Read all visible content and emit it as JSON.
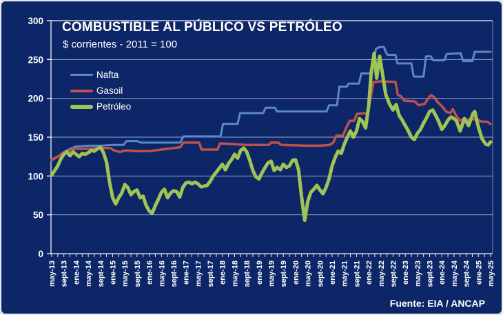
{
  "window": {
    "background_color": "#0d2667",
    "frame_border_color": "#e8ebf1"
  },
  "header": {
    "title": "COMBUSTIBLE AL PÚBLICO VS PETRÓLEO",
    "subtitle": "$ corrientes - 2011 = 100"
  },
  "footer": {
    "source": "Fuente: EIA / ANCAP"
  },
  "legend": {
    "position": "top-left",
    "items": [
      {
        "label": "Nafta",
        "color": "#5c88c9",
        "swatch_height": 3
      },
      {
        "label": "Gasoil",
        "color": "#c0504d",
        "swatch_height": 4
      },
      {
        "label": "Petróleo",
        "color": "#9fc455",
        "swatch_height": 6
      }
    ]
  },
  "chart_data": {
    "type": "line",
    "title": "COMBUSTIBLE AL PÚBLICO VS PETRÓLEO",
    "subtitle": "$ corrientes - 2011 = 100",
    "xlabel": "",
    "ylabel": "",
    "ylim": [
      0,
      300
    ],
    "y_ticks": [
      0,
      50,
      100,
      150,
      200,
      250,
      300
    ],
    "grid": true,
    "gridline_color": "#b0bfdc",
    "axis_color": "#ffffff",
    "text_color": "#ffffff",
    "x_labels": [
      "may-13",
      "sept-13",
      "ene-14",
      "may-14",
      "sept-14",
      "ene-15",
      "may-15",
      "sept-15",
      "ene-16",
      "may-16",
      "sept-16",
      "ene-17",
      "may-17",
      "sept-17",
      "ene-18",
      "may-18",
      "sept-18",
      "ene-19",
      "may-19",
      "sept-19",
      "ene-20",
      "may-20",
      "sept-20",
      "ene-21",
      "may-21",
      "sept-21",
      "ene-22",
      "may-22",
      "sept-22",
      "ene-23",
      "may-23",
      "sept-23",
      "ene-24",
      "may-24",
      "sept-24",
      "ene-25",
      "may-25"
    ],
    "x_label_interval_months": 4,
    "x_minor_tick_every_ticks": 0.5,
    "series": [
      {
        "name": "Nafta",
        "color": "#5c88c9",
        "width": 3,
        "points": [
          [
            0,
            120
          ],
          [
            0.5,
            125
          ],
          [
            1,
            131
          ],
          [
            1.5,
            135
          ],
          [
            2,
            138
          ],
          [
            3,
            139
          ],
          [
            4,
            139
          ],
          [
            5,
            140
          ],
          [
            5.9,
            140
          ],
          [
            6.15,
            145
          ],
          [
            7,
            145
          ],
          [
            7.3,
            143
          ],
          [
            10.55,
            143
          ],
          [
            10.8,
            151
          ],
          [
            13.85,
            151
          ],
          [
            14.05,
            167
          ],
          [
            15.25,
            167
          ],
          [
            15.45,
            181
          ],
          [
            17.35,
            181
          ],
          [
            17.55,
            188
          ],
          [
            18.3,
            188
          ],
          [
            18.5,
            183
          ],
          [
            22.55,
            183
          ],
          [
            22.75,
            191
          ],
          [
            23.4,
            191
          ],
          [
            23.6,
            215
          ],
          [
            24.2,
            215
          ],
          [
            24.35,
            219
          ],
          [
            25.2,
            219
          ],
          [
            25.4,
            232
          ],
          [
            26.1,
            232
          ],
          [
            26.3,
            240
          ],
          [
            26.6,
            264
          ],
          [
            26.9,
            266
          ],
          [
            27.25,
            266
          ],
          [
            27.4,
            260
          ],
          [
            27.55,
            256
          ],
          [
            28.2,
            256
          ],
          [
            28.35,
            245
          ],
          [
            29.5,
            245
          ],
          [
            29.7,
            228
          ],
          [
            30.5,
            228
          ],
          [
            30.7,
            254
          ],
          [
            31.1,
            254
          ],
          [
            31.3,
            249
          ],
          [
            32.2,
            249
          ],
          [
            32.4,
            257
          ],
          [
            33.55,
            258
          ],
          [
            33.75,
            248
          ],
          [
            34.5,
            248
          ],
          [
            34.7,
            260
          ],
          [
            36,
            260
          ]
        ]
      },
      {
        "name": "Gasoil",
        "color": "#c0504d",
        "width": 3.5,
        "points": [
          [
            0,
            121
          ],
          [
            0.5,
            125
          ],
          [
            1,
            130
          ],
          [
            1.5,
            133
          ],
          [
            2,
            135
          ],
          [
            3,
            135
          ],
          [
            4,
            136
          ],
          [
            4.8,
            136
          ],
          [
            5.1,
            133
          ],
          [
            5.6,
            131
          ],
          [
            6.1,
            133
          ],
          [
            7,
            132
          ],
          [
            8,
            132
          ],
          [
            9,
            134
          ],
          [
            10,
            136
          ],
          [
            10.55,
            137
          ],
          [
            10.8,
            143
          ],
          [
            12.1,
            143
          ],
          [
            12.3,
            134
          ],
          [
            13.6,
            134
          ],
          [
            13.8,
            142
          ],
          [
            15,
            141
          ],
          [
            16,
            140
          ],
          [
            17.8,
            140
          ],
          [
            18,
            143
          ],
          [
            18.6,
            143
          ],
          [
            18.8,
            140
          ],
          [
            21,
            139
          ],
          [
            22,
            139
          ],
          [
            22.8,
            140
          ],
          [
            23.1,
            143
          ],
          [
            23.35,
            152
          ],
          [
            23.9,
            152
          ],
          [
            24.15,
            162
          ],
          [
            24.45,
            171
          ],
          [
            24.8,
            171
          ],
          [
            25.05,
            180
          ],
          [
            25.9,
            181
          ],
          [
            26.15,
            200
          ],
          [
            26.4,
            221
          ],
          [
            27,
            222
          ],
          [
            28.2,
            221
          ],
          [
            28.4,
            204
          ],
          [
            28.65,
            203
          ],
          [
            28.9,
            197
          ],
          [
            29.8,
            196
          ],
          [
            30.1,
            191
          ],
          [
            30.6,
            193
          ],
          [
            30.85,
            199
          ],
          [
            31.1,
            204
          ],
          [
            31.35,
            202
          ],
          [
            31.6,
            196
          ],
          [
            32,
            190
          ],
          [
            32.35,
            183
          ],
          [
            32.7,
            181
          ],
          [
            32.9,
            186
          ],
          [
            33.2,
            177
          ],
          [
            33.5,
            171
          ],
          [
            33.8,
            174
          ],
          [
            34.1,
            172
          ],
          [
            34.4,
            174
          ],
          [
            34.7,
            173
          ],
          [
            35,
            172
          ],
          [
            35.3,
            170
          ],
          [
            35.7,
            170
          ],
          [
            36,
            167
          ]
        ]
      },
      {
        "name": "Petróleo",
        "color": "#9fc455",
        "width": 5,
        "points": [
          [
            0,
            101
          ],
          [
            0.25,
            107
          ],
          [
            0.5,
            113
          ],
          [
            0.75,
            122
          ],
          [
            1,
            128
          ],
          [
            1.25,
            131
          ],
          [
            1.5,
            126
          ],
          [
            1.75,
            131
          ],
          [
            2,
            128
          ],
          [
            2.25,
            125
          ],
          [
            2.5,
            129
          ],
          [
            2.75,
            128
          ],
          [
            3,
            130
          ],
          [
            3.25,
            133
          ],
          [
            3.5,
            132
          ],
          [
            3.75,
            135
          ],
          [
            4,
            137
          ],
          [
            4.25,
            130
          ],
          [
            4.5,
            118
          ],
          [
            4.75,
            92
          ],
          [
            5,
            72
          ],
          [
            5.25,
            64
          ],
          [
            5.5,
            72
          ],
          [
            5.75,
            78
          ],
          [
            6,
            89
          ],
          [
            6.25,
            85
          ],
          [
            6.5,
            76
          ],
          [
            6.75,
            80
          ],
          [
            7,
            82
          ],
          [
            7.25,
            72
          ],
          [
            7.5,
            74
          ],
          [
            7.75,
            62
          ],
          [
            8,
            55
          ],
          [
            8.25,
            52
          ],
          [
            8.5,
            62
          ],
          [
            8.75,
            70
          ],
          [
            9,
            79
          ],
          [
            9.25,
            83
          ],
          [
            9.5,
            72
          ],
          [
            9.75,
            78
          ],
          [
            10,
            81
          ],
          [
            10.25,
            80
          ],
          [
            10.5,
            73
          ],
          [
            10.75,
            85
          ],
          [
            11,
            91
          ],
          [
            11.25,
            92
          ],
          [
            11.5,
            90
          ],
          [
            11.75,
            92
          ],
          [
            12,
            90
          ],
          [
            12.25,
            86
          ],
          [
            12.5,
            87
          ],
          [
            12.75,
            88
          ],
          [
            13,
            93
          ],
          [
            13.25,
            100
          ],
          [
            13.5,
            105
          ],
          [
            13.75,
            110
          ],
          [
            14,
            115
          ],
          [
            14.25,
            108
          ],
          [
            14.5,
            116
          ],
          [
            14.75,
            121
          ],
          [
            15,
            128
          ],
          [
            15.25,
            123
          ],
          [
            15.5,
            133
          ],
          [
            15.75,
            136
          ],
          [
            16,
            131
          ],
          [
            16.25,
            120
          ],
          [
            16.5,
            107
          ],
          [
            16.75,
            99
          ],
          [
            17,
            96
          ],
          [
            17.25,
            104
          ],
          [
            17.5,
            111
          ],
          [
            17.75,
            117
          ],
          [
            18,
            119
          ],
          [
            18.25,
            107
          ],
          [
            18.5,
            111
          ],
          [
            18.75,
            108
          ],
          [
            19,
            115
          ],
          [
            19.25,
            111
          ],
          [
            19.5,
            113
          ],
          [
            19.75,
            120
          ],
          [
            20,
            121
          ],
          [
            20.25,
            108
          ],
          [
            20.5,
            73
          ],
          [
            20.75,
            43
          ],
          [
            21,
            67
          ],
          [
            21.25,
            79
          ],
          [
            21.5,
            83
          ],
          [
            21.75,
            88
          ],
          [
            22,
            82
          ],
          [
            22.25,
            77
          ],
          [
            22.5,
            85
          ],
          [
            22.75,
            96
          ],
          [
            23,
            113
          ],
          [
            23.25,
            124
          ],
          [
            23.5,
            132
          ],
          [
            23.75,
            129
          ],
          [
            24,
            141
          ],
          [
            24.25,
            150
          ],
          [
            24.5,
            158
          ],
          [
            24.75,
            150
          ],
          [
            25,
            158
          ],
          [
            25.25,
            174
          ],
          [
            25.5,
            170
          ],
          [
            25.75,
            162
          ],
          [
            26,
            190
          ],
          [
            26.2,
            232
          ],
          [
            26.45,
            258
          ],
          [
            26.65,
            226
          ],
          [
            26.9,
            254
          ],
          [
            27.15,
            230
          ],
          [
            27.4,
            205
          ],
          [
            27.7,
            193
          ],
          [
            28,
            185
          ],
          [
            28.25,
            192
          ],
          [
            28.5,
            178
          ],
          [
            28.75,
            172
          ],
          [
            29,
            165
          ],
          [
            29.25,
            158
          ],
          [
            29.5,
            150
          ],
          [
            29.75,
            147
          ],
          [
            30,
            155
          ],
          [
            30.25,
            160
          ],
          [
            30.5,
            168
          ],
          [
            30.75,
            175
          ],
          [
            31,
            183
          ],
          [
            31.25,
            185
          ],
          [
            31.5,
            178
          ],
          [
            31.75,
            170
          ],
          [
            32,
            160
          ],
          [
            32.25,
            165
          ],
          [
            32.5,
            172
          ],
          [
            32.75,
            176
          ],
          [
            33,
            174
          ],
          [
            33.2,
            171
          ],
          [
            33.5,
            158
          ],
          [
            33.85,
            174
          ],
          [
            34.2,
            165
          ],
          [
            34.55,
            180
          ],
          [
            34.7,
            183
          ],
          [
            35,
            163
          ],
          [
            35.3,
            148
          ],
          [
            35.6,
            141
          ],
          [
            35.8,
            140
          ],
          [
            36,
            144
          ]
        ]
      }
    ]
  }
}
